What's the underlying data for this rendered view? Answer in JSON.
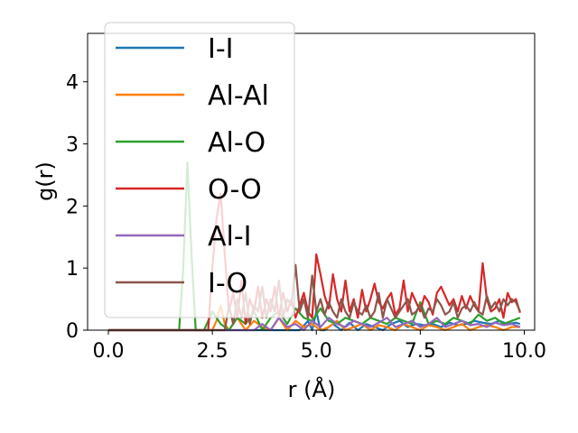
{
  "chart_data": {
    "type": "line",
    "xlabel": "r (Å)",
    "ylabel": "g(r)",
    "xlim": [
      -0.5,
      10.25
    ],
    "ylim": [
      0,
      4.78
    ],
    "xticks": [
      0.0,
      2.5,
      5.0,
      7.5,
      10.0
    ],
    "xtick_labels": [
      "0.0",
      "2.5",
      "5.0",
      "7.5",
      "10.0"
    ],
    "yticks": [
      0,
      1,
      2,
      3,
      4
    ],
    "ytick_labels": [
      "0",
      "1",
      "2",
      "3",
      "4"
    ],
    "grid": false,
    "legend_position": "upper-left",
    "series": [
      {
        "name": "I-I",
        "color": "#1f77b4",
        "x": [
          0.0,
          4.6,
          4.8,
          4.9,
          5.0,
          5.1,
          5.2,
          5.4,
          5.6,
          5.8,
          6.0,
          6.2,
          6.4,
          6.6,
          6.8,
          7.0,
          7.2,
          7.4,
          7.6,
          7.8,
          8.0,
          8.2,
          8.4,
          8.6,
          8.8,
          9.0,
          9.2,
          9.4,
          9.6,
          9.8,
          9.9
        ],
        "y": [
          0.0,
          0.0,
          0.15,
          0.0,
          0.3,
          0.0,
          0.0,
          0.1,
          0.0,
          0.12,
          0.0,
          0.1,
          0.05,
          0.0,
          0.1,
          0.15,
          0.05,
          0.1,
          0.08,
          0.1,
          0.05,
          0.12,
          0.08,
          0.1,
          0.15,
          0.12,
          0.1,
          0.15,
          0.1,
          0.12,
          0.1
        ]
      },
      {
        "name": "Al-Al",
        "color": "#ff7f0e",
        "x": [
          0.0,
          2.5,
          2.6,
          2.7,
          2.8,
          2.9,
          3.1,
          3.3,
          3.5,
          3.7,
          3.9,
          4.1,
          4.3,
          4.5,
          4.7,
          4.9,
          5.1,
          5.3,
          5.5,
          5.7,
          5.9,
          6.1,
          6.3,
          6.5,
          6.7,
          6.9,
          7.1,
          7.3,
          7.5,
          7.7,
          7.9,
          8.1,
          8.3,
          8.5,
          8.7,
          8.9,
          9.1,
          9.3,
          9.5,
          9.7,
          9.9
        ],
        "y": [
          0.0,
          0.0,
          0.15,
          0.4,
          0.1,
          0.0,
          0.2,
          0.0,
          0.15,
          0.05,
          0.0,
          0.2,
          0.0,
          0.15,
          0.05,
          0.1,
          0.0,
          0.05,
          0.15,
          0.0,
          0.05,
          0.1,
          0.0,
          0.08,
          0.05,
          0.0,
          0.1,
          0.05,
          0.0,
          0.08,
          0.05,
          0.0,
          0.05,
          0.1,
          0.0,
          0.05,
          0.08,
          0.05,
          0.0,
          0.05,
          0.05
        ]
      },
      {
        "name": "Al-O",
        "color": "#2ca02c",
        "x": [
          0.0,
          1.7,
          1.8,
          1.9,
          2.0,
          2.1,
          2.3,
          2.5,
          2.7,
          2.9,
          3.1,
          3.3,
          3.5,
          3.7,
          3.9,
          4.1,
          4.3,
          4.5,
          4.7,
          4.9,
          5.1,
          5.3,
          5.5,
          5.7,
          5.9,
          6.1,
          6.3,
          6.5,
          6.7,
          6.9,
          7.1,
          7.3,
          7.5,
          7.7,
          7.9,
          8.1,
          8.3,
          8.5,
          8.7,
          8.9,
          9.1,
          9.3,
          9.5,
          9.7,
          9.9
        ],
        "y": [
          0.0,
          0.0,
          1.0,
          2.7,
          1.2,
          0.0,
          0.0,
          0.3,
          0.1,
          0.0,
          0.2,
          0.1,
          0.3,
          0.0,
          0.2,
          0.3,
          0.1,
          0.35,
          0.2,
          0.15,
          0.35,
          0.15,
          0.1,
          0.2,
          0.15,
          0.1,
          0.2,
          0.15,
          0.1,
          0.2,
          0.15,
          0.1,
          0.45,
          0.1,
          0.15,
          0.1,
          0.2,
          0.15,
          0.1,
          0.25,
          0.15,
          0.2,
          0.1,
          0.15,
          0.2
        ]
      },
      {
        "name": "O-O",
        "color": "#d62728",
        "x": [
          0.0,
          2.4,
          2.5,
          2.6,
          2.7,
          2.8,
          2.9,
          3.0,
          3.1,
          3.2,
          3.3,
          3.4,
          3.5,
          3.6,
          3.7,
          3.8,
          3.9,
          4.0,
          4.1,
          4.2,
          4.3,
          4.4,
          4.5,
          4.6,
          4.7,
          4.8,
          4.9,
          5.0,
          5.1,
          5.2,
          5.3,
          5.4,
          5.5,
          5.6,
          5.7,
          5.8,
          5.9,
          6.0,
          6.1,
          6.2,
          6.3,
          6.4,
          6.5,
          6.6,
          6.7,
          6.8,
          6.9,
          7.0,
          7.1,
          7.2,
          7.3,
          7.4,
          7.5,
          7.6,
          7.7,
          7.8,
          7.9,
          8.0,
          8.1,
          8.2,
          8.3,
          8.4,
          8.5,
          8.6,
          8.7,
          8.8,
          8.9,
          9.0,
          9.1,
          9.2,
          9.3,
          9.4,
          9.5,
          9.6,
          9.7,
          9.8,
          9.9
        ],
        "y": [
          0.0,
          0.0,
          1.0,
          1.8,
          2.2,
          1.2,
          0.3,
          0.6,
          0.2,
          0.8,
          0.1,
          0.5,
          0.3,
          0.7,
          0.2,
          0.5,
          0.3,
          0.7,
          0.2,
          0.6,
          0.3,
          0.5,
          0.2,
          0.4,
          0.6,
          0.3,
          0.2,
          1.22,
          0.9,
          0.55,
          0.35,
          0.9,
          0.5,
          0.3,
          0.8,
          0.3,
          0.5,
          0.2,
          0.65,
          0.3,
          0.5,
          0.75,
          0.45,
          0.35,
          0.5,
          0.6,
          0.25,
          0.35,
          0.8,
          0.3,
          0.6,
          0.45,
          0.3,
          0.55,
          0.45,
          0.25,
          0.6,
          0.7,
          0.55,
          0.4,
          0.5,
          0.3,
          0.55,
          0.35,
          0.55,
          0.4,
          0.3,
          1.08,
          0.5,
          0.3,
          0.35,
          0.5,
          0.2,
          0.6,
          0.45,
          0.5,
          0.28
        ]
      },
      {
        "name": "Al-I",
        "color": "#9467bd",
        "x": [
          0.0,
          3.5,
          3.7,
          3.9,
          4.1,
          4.3,
          4.5,
          4.7,
          4.9,
          5.1,
          5.3,
          5.5,
          5.7,
          5.9,
          6.1,
          6.3,
          6.5,
          6.7,
          6.9,
          7.1,
          7.3,
          7.5,
          7.7,
          7.9,
          8.1,
          8.3,
          8.5,
          8.7,
          8.9,
          9.1,
          9.3,
          9.5,
          9.7,
          9.9
        ],
        "y": [
          0.0,
          0.0,
          0.1,
          0.0,
          0.2,
          0.05,
          0.1,
          0.0,
          0.15,
          0.05,
          0.2,
          0.1,
          0.05,
          0.15,
          0.1,
          0.05,
          0.12,
          0.2,
          0.05,
          0.1,
          0.15,
          0.05,
          0.1,
          0.2,
          0.05,
          0.1,
          0.15,
          0.08,
          0.1,
          0.05,
          0.12,
          0.08,
          0.1,
          0.05
        ]
      },
      {
        "name": "I-O",
        "color": "#8c564b",
        "x": [
          0.0,
          2.8,
          2.9,
          3.0,
          3.1,
          3.2,
          3.3,
          3.4,
          3.5,
          3.6,
          3.7,
          3.8,
          3.9,
          4.0,
          4.1,
          4.2,
          4.3,
          4.4,
          4.5,
          4.6,
          4.7,
          4.8,
          4.9,
          5.0,
          5.1,
          5.2,
          5.3,
          5.4,
          5.5,
          5.6,
          5.7,
          5.8,
          5.9,
          6.0,
          6.1,
          6.2,
          6.3,
          6.4,
          6.5,
          6.6,
          6.7,
          6.8,
          6.9,
          7.0,
          7.1,
          7.2,
          7.3,
          7.4,
          7.5,
          7.6,
          7.7,
          7.8,
          7.9,
          8.0,
          8.1,
          8.2,
          8.3,
          8.4,
          8.5,
          8.6,
          8.7,
          8.8,
          8.9,
          9.0,
          9.1,
          9.2,
          9.3,
          9.4,
          9.5,
          9.6,
          9.7,
          9.8,
          9.9
        ],
        "y": [
          0.0,
          0.0,
          0.4,
          0.1,
          0.5,
          0.2,
          0.6,
          0.1,
          0.4,
          0.3,
          0.7,
          0.2,
          0.5,
          0.3,
          0.8,
          0.2,
          0.5,
          0.4,
          1.05,
          0.3,
          0.5,
          0.2,
          0.88,
          0.3,
          0.5,
          0.25,
          0.45,
          0.3,
          0.2,
          0.5,
          0.3,
          0.2,
          0.45,
          0.3,
          0.25,
          0.4,
          0.2,
          0.3,
          0.6,
          0.2,
          0.5,
          0.35,
          0.2,
          0.3,
          0.4,
          0.5,
          0.25,
          0.3,
          0.4,
          0.2,
          0.35,
          0.3,
          0.5,
          0.4,
          0.25,
          0.3,
          0.45,
          0.2,
          0.35,
          0.4,
          0.3,
          0.45,
          0.3,
          0.25,
          0.55,
          0.35,
          0.45,
          0.3,
          0.5,
          0.4,
          0.5,
          0.45,
          0.3
        ]
      }
    ]
  }
}
